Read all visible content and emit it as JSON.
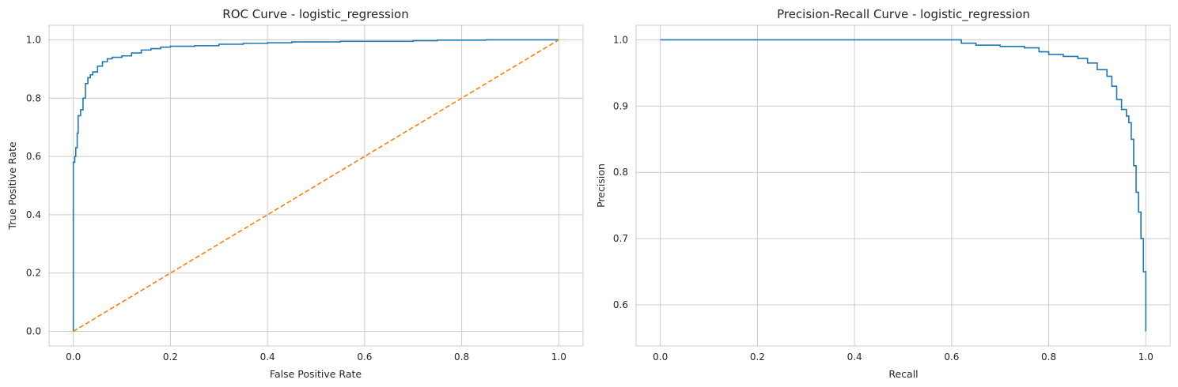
{
  "chart_data": [
    {
      "type": "line",
      "title": "ROC Curve - logistic_regression",
      "xlabel": "False Positive Rate",
      "ylabel": "True Positive Rate",
      "xlim": [
        -0.05,
        1.05
      ],
      "ylim": [
        -0.05,
        1.05
      ],
      "x_ticks": [
        0.0,
        0.2,
        0.4,
        0.6,
        0.8,
        1.0
      ],
      "y_ticks": [
        0.0,
        0.2,
        0.4,
        0.6,
        0.8,
        1.0
      ],
      "x_tick_labels": [
        "0.0",
        "0.2",
        "0.4",
        "0.6",
        "0.8",
        "1.0"
      ],
      "y_tick_labels": [
        "0.0",
        "0.2",
        "0.4",
        "0.6",
        "0.8",
        "1.0"
      ],
      "grid": true,
      "series": [
        {
          "color": "#1f77b4",
          "style": "solid",
          "step": true,
          "x": [
            0.0,
            0.0,
            0.003,
            0.005,
            0.008,
            0.01,
            0.015,
            0.02,
            0.025,
            0.03,
            0.035,
            0.04,
            0.05,
            0.06,
            0.07,
            0.08,
            0.1,
            0.12,
            0.14,
            0.16,
            0.18,
            0.2,
            0.25,
            0.3,
            0.35,
            0.4,
            0.45,
            0.55,
            0.7,
            0.75,
            0.85,
            1.0
          ],
          "y": [
            0.0,
            0.58,
            0.6,
            0.63,
            0.68,
            0.74,
            0.76,
            0.8,
            0.85,
            0.87,
            0.88,
            0.89,
            0.91,
            0.925,
            0.935,
            0.94,
            0.945,
            0.955,
            0.965,
            0.97,
            0.975,
            0.978,
            0.98,
            0.985,
            0.988,
            0.99,
            0.993,
            0.995,
            0.997,
            0.999,
            1.0,
            1.0
          ]
        },
        {
          "color": "#ff7f0e",
          "style": "dashed",
          "x": [
            0.0,
            1.0
          ],
          "y": [
            0.0,
            1.0
          ]
        }
      ]
    },
    {
      "type": "line",
      "title": "Precision-Recall Curve - logistic_regression",
      "xlabel": "Recall",
      "ylabel": "Precision",
      "xlim": [
        -0.05,
        1.05
      ],
      "ylim": [
        0.538,
        1.022
      ],
      "x_ticks": [
        0.0,
        0.2,
        0.4,
        0.6,
        0.8,
        1.0
      ],
      "y_ticks": [
        0.6,
        0.7,
        0.8,
        0.9,
        1.0
      ],
      "x_tick_labels": [
        "0.0",
        "0.2",
        "0.4",
        "0.6",
        "0.8",
        "1.0"
      ],
      "y_tick_labels": [
        "0.6",
        "0.7",
        "0.8",
        "0.9",
        "1.0"
      ],
      "grid": true,
      "series": [
        {
          "color": "#1f77b4",
          "style": "solid",
          "step": true,
          "x": [
            0.0,
            0.59,
            0.62,
            0.65,
            0.7,
            0.75,
            0.78,
            0.8,
            0.83,
            0.86,
            0.88,
            0.9,
            0.92,
            0.93,
            0.94,
            0.95,
            0.96,
            0.965,
            0.97,
            0.975,
            0.98,
            0.985,
            0.99,
            0.995,
            1.0,
            1.0
          ],
          "y": [
            1.0,
            1.0,
            0.995,
            0.992,
            0.99,
            0.988,
            0.982,
            0.978,
            0.975,
            0.972,
            0.965,
            0.955,
            0.945,
            0.93,
            0.91,
            0.895,
            0.885,
            0.875,
            0.85,
            0.81,
            0.77,
            0.74,
            0.7,
            0.65,
            0.63,
            0.56
          ]
        }
      ]
    }
  ]
}
